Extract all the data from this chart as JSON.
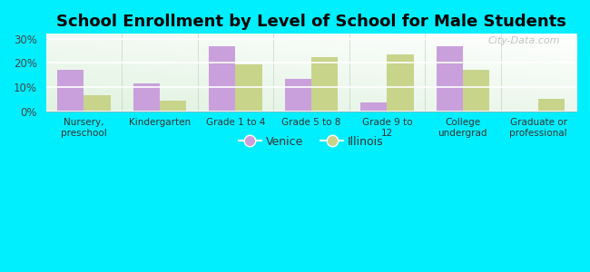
{
  "title": "School Enrollment by Level of School for Male Students",
  "categories": [
    "Nursery,\npreschool",
    "Kindergarten",
    "Grade 1 to 4",
    "Grade 5 to 8",
    "Grade 9 to\n12",
    "College\nundergrad",
    "Graduate or\nprofessional"
  ],
  "venice_values": [
    17.0,
    11.5,
    27.0,
    13.5,
    3.5,
    27.0,
    0.0
  ],
  "illinois_values": [
    6.5,
    4.5,
    19.5,
    22.5,
    23.5,
    17.0,
    5.0
  ],
  "venice_color": "#c9a0dc",
  "illinois_color": "#c8d48a",
  "background_outer": "#00efff",
  "background_inner_bottom": "#c8f0d0",
  "background_inner_top": "#f8fff8",
  "yticks": [
    0,
    10,
    20,
    30
  ],
  "ylim": [
    0,
    32
  ],
  "bar_width": 0.35,
  "legend_labels": [
    "Venice",
    "Illinois"
  ],
  "title_fontsize": 13,
  "watermark": "City-Data.com"
}
